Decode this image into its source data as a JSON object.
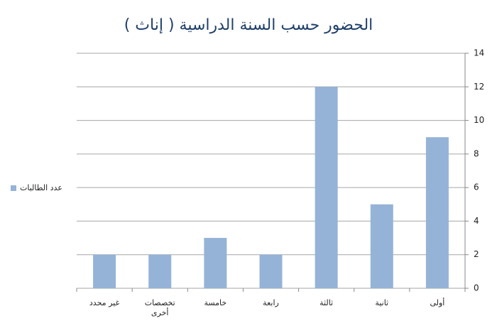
{
  "chart_data": {
    "type": "bar",
    "title": "الحضور حسب السنة الدراسية ( إناث )",
    "categories": [
      "أولى",
      "ثانية",
      "ثالثة",
      "رابعة",
      "خامسة",
      "تخصصات أخرى",
      "غير محدد"
    ],
    "series": [
      {
        "name": "عدد الطالبات",
        "color": "#95b3d7",
        "values": [
          9,
          5,
          12,
          2,
          3,
          2,
          2
        ]
      }
    ],
    "ylim": [
      0,
      14
    ],
    "yticks": [
      0,
      2,
      4,
      6,
      8,
      10,
      12,
      14
    ],
    "grid": true,
    "legend": "left",
    "direction": "rtl"
  }
}
